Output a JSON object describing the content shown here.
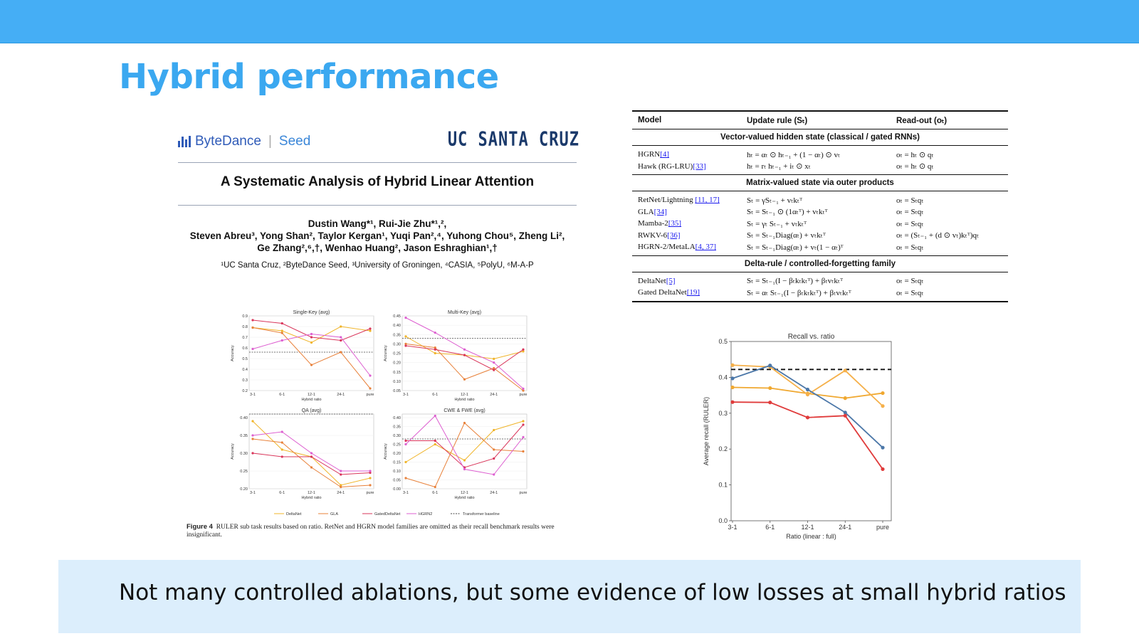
{
  "slide": {
    "title": "Hybrid performance",
    "banner": "Not many controlled ablations, but some evidence of low losses at small hybrid ratios",
    "accent_color": "#45aef5",
    "banner_color": "#dceefc"
  },
  "paper": {
    "logo_left_brand": "ByteDance",
    "logo_left_product": "Seed",
    "logo_right": "UC SANTA CRUZ",
    "title": "A Systematic Analysis of Hybrid Linear Attention",
    "authors_line1": "Dustin Wang*¹, Rui-Jie Zhu*¹,²,",
    "authors_line2": "Steven Abreu³, Yong Shan², Taylor Kergan¹, Yuqi Pan²,⁴, Yuhong Chou⁵, Zheng Li²,",
    "authors_line3": "Ge Zhang²,⁶,†, Wenhao Huang², Jason Eshraghian¹,†",
    "affiliations": "¹UC Santa Cruz, ²ByteDance Seed, ³University of Groningen, ⁴CASIA, ⁵PolyU, ⁶M-A-P",
    "caption_label": "Figure 4",
    "caption_text": "RULER sub task results based on ratio. RetNet and HGRN model families are omitted as their recall benchmark results were insignificant.",
    "subplots": [
      {
        "title": "Single-Key (avg)",
        "ylabel": "Accuracy",
        "xlabel": "Hybrid ratio",
        "ylim": [
          0.2,
          0.9
        ],
        "yticks": [
          "0.9",
          "0.8",
          "0.7",
          "0.6",
          "0.5",
          "0.4",
          "0.3",
          "0.2"
        ],
        "baseline": 0.56,
        "series": [
          [
            0.79,
            0.76,
            0.65,
            0.8,
            0.76
          ],
          [
            0.79,
            0.74,
            0.44,
            0.56,
            0.22
          ],
          [
            0.86,
            0.83,
            0.7,
            0.67,
            0.78
          ],
          [
            0.59,
            0.67,
            0.73,
            0.7,
            0.34
          ]
        ]
      },
      {
        "title": "Multi-Key (avg)",
        "ylabel": "Accuracy",
        "xlabel": "Hybrid ratio",
        "ylim": [
          0.05,
          0.45
        ],
        "yticks": [
          "0.45",
          "0.40",
          "0.35",
          "0.30",
          "0.25",
          "0.20",
          "0.15",
          "0.10",
          "0.05"
        ],
        "baseline": 0.33,
        "series": [
          [
            0.34,
            0.25,
            0.24,
            0.22,
            0.26
          ],
          [
            0.3,
            0.28,
            0.11,
            0.17,
            0.05
          ],
          [
            0.29,
            0.27,
            0.24,
            0.16,
            0.27
          ],
          [
            0.44,
            0.36,
            0.27,
            0.2,
            0.06
          ]
        ]
      },
      {
        "title": "QA (avg)",
        "ylabel": "Accuracy",
        "xlabel": "Hybrid ratio",
        "ylim": [
          0.2,
          0.41
        ],
        "yticks": [
          "0.40",
          "0.35",
          "0.30",
          "0.25",
          "0.20"
        ],
        "baseline": 0.41,
        "series": [
          [
            0.39,
            0.31,
            0.29,
            0.21,
            0.23
          ],
          [
            0.34,
            0.33,
            0.26,
            0.205,
            0.21
          ],
          [
            0.3,
            0.29,
            0.29,
            0.24,
            0.245
          ],
          [
            0.35,
            0.36,
            0.3,
            0.25,
            0.25
          ]
        ]
      },
      {
        "title": "CWE & FWE (avg)",
        "ylabel": "Accuracy",
        "xlabel": "Hybrid ratio",
        "ylim": [
          0.0,
          0.42
        ],
        "yticks": [
          "0.40",
          "0.35",
          "0.30",
          "0.25",
          "0.20",
          "0.15",
          "0.10",
          "0.05",
          "0.00"
        ],
        "baseline": 0.28,
        "series": [
          [
            0.15,
            0.25,
            0.16,
            0.33,
            0.38
          ],
          [
            0.06,
            0.01,
            0.37,
            0.22,
            0.21
          ],
          [
            0.27,
            0.27,
            0.12,
            0.17,
            0.36
          ],
          [
            0.25,
            0.41,
            0.11,
            0.08,
            0.29
          ]
        ]
      }
    ],
    "xticks": [
      "3-1",
      "6-1",
      "12-1",
      "24-1",
      "pure"
    ],
    "legend": [
      "DeltaNet",
      "GLA",
      "GatedDeltaNet",
      "HGRN2",
      "Transformer baseline"
    ],
    "series_colors": [
      "#f0b429",
      "#e8813a",
      "#d9355a",
      "#dd5fd0"
    ]
  },
  "table": {
    "headers": [
      "Model",
      "Update rule (Sₜ)",
      "Read-out (oₜ)"
    ],
    "sections": [
      {
        "title": "Vector-valued hidden state (classical / gated RNNs)",
        "rows": [
          {
            "model": "HGRN",
            "ref": "[4]",
            "update": "hₜ = αₜ ⊙ hₜ₋₁ + (1 − αₜ) ⊙ vₜ",
            "readout": "oₜ = hₜ ⊙ qₜ"
          },
          {
            "model": "Hawk (RG-LRU)",
            "ref": "[33]",
            "update": "hₜ = rₜ hₜ₋₁ + iₜ ⊙ xₜ",
            "readout": "oₜ = hₜ ⊙ qₜ"
          }
        ]
      },
      {
        "title": "Matrix-valued state via outer products",
        "rows": [
          {
            "model": "RetNet/Lightning",
            "ref": "[11, 17]",
            "update": "Sₜ = γSₜ₋₁ + vₜkₜᵀ",
            "readout": "oₜ = Sₜqₜ"
          },
          {
            "model": "GLA",
            "ref": "[34]",
            "update": "Sₜ = Sₜ₋₁ ⊙ (1αₜᵀ) + vₜkₜᵀ",
            "readout": "oₜ = Sₜqₜ"
          },
          {
            "model": "Mamba-2",
            "ref": "[35]",
            "update": "Sₜ = γₜ Sₜ₋₁ + vₜkₜᵀ",
            "readout": "oₜ = Sₜqₜ"
          },
          {
            "model": "RWKV-6",
            "ref": "[36]",
            "update": "Sₜ = Sₜ₋₁Diag(αₜ) + vₜkₜᵀ",
            "readout": "oₜ = (Sₜ₋₁ + (d ⊙ vₜ)kₜᵀ)qₜ"
          },
          {
            "model": "HGRN-2/MetaLA",
            "ref": "[4, 37]",
            "update": "Sₜ = Sₜ₋₁Diag(αₜ) + vₜ(1 − αₜ)ᵀ",
            "readout": "oₜ = Sₜqₜ"
          }
        ]
      },
      {
        "title": "Delta-rule / controlled-forgetting family",
        "rows": [
          {
            "model": "DeltaNet",
            "ref": "[5]",
            "update": "Sₜ = Sₜ₋₁(I − βₜkₜkₜᵀ) + βₜvₜkₜᵀ",
            "readout": "oₜ = Sₜqₜ"
          },
          {
            "model": "Gated DeltaNet",
            "ref": "[19]",
            "update": "Sₜ = αₜ Sₜ₋₁(I − βₜkₜkₜᵀ) + βₜvₜkₜᵀ",
            "readout": "oₜ = Sₜqₜ"
          }
        ]
      }
    ]
  },
  "chart_data": {
    "type": "line",
    "title": "Recall vs. ratio",
    "xlabel": "Ratio (linear : full)",
    "ylabel": "Average recall (RULER)",
    "categories": [
      "3-1",
      "6-1",
      "12-1",
      "24-1",
      "pure"
    ],
    "yticks": [
      "0.0",
      "0.1",
      "0.2",
      "0.3",
      "0.4",
      "0.5"
    ],
    "ylim": [
      0.0,
      0.5
    ],
    "baseline": 0.422,
    "series": [
      {
        "color": "#f0a830",
        "values": [
          0.372,
          0.37,
          0.355,
          0.342,
          0.356
        ]
      },
      {
        "color": "#f5b04a",
        "values": [
          0.434,
          0.429,
          0.352,
          0.419,
          0.32
        ]
      },
      {
        "color": "#4b77a8",
        "values": [
          0.397,
          0.433,
          0.366,
          0.302,
          0.204
        ]
      },
      {
        "color": "#e03b3b",
        "values": [
          0.331,
          0.33,
          0.288,
          0.293,
          0.144
        ]
      }
    ]
  }
}
